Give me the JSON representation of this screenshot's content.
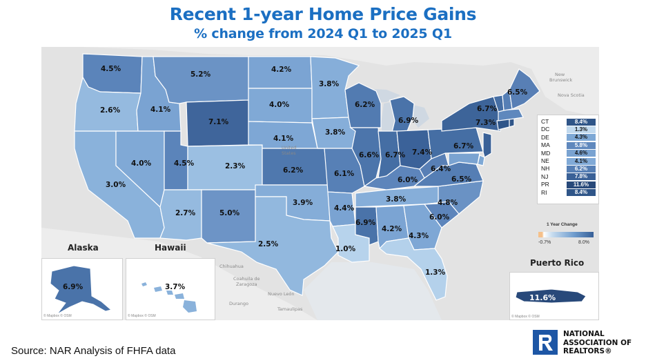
{
  "header": {
    "title": "Recent 1-year Home Price Gains",
    "subtitle": "% change from 2024 Q1 to 2025 Q1"
  },
  "colors": {
    "title": "#1b6fc2",
    "scale_low": "#c7dcef",
    "scale_high": "#365f97",
    "scale_negative": "#f5c08a",
    "realtor_blue": "#1d56a5"
  },
  "states": [
    {
      "code": "WA",
      "value": "4.5%"
    },
    {
      "code": "OR",
      "value": "2.6%"
    },
    {
      "code": "CA",
      "value": "3.0%"
    },
    {
      "code": "ID",
      "value": "4.1%"
    },
    {
      "code": "NV",
      "value": "4.0%"
    },
    {
      "code": "MT",
      "value": "5.2%"
    },
    {
      "code": "WY",
      "value": "7.1%"
    },
    {
      "code": "UT",
      "value": "4.5%"
    },
    {
      "code": "AZ",
      "value": "2.7%"
    },
    {
      "code": "CO",
      "value": "2.3%"
    },
    {
      "code": "NM",
      "value": "5.0%"
    },
    {
      "code": "ND",
      "value": "4.2%"
    },
    {
      "code": "SD",
      "value": "4.0%"
    },
    {
      "code": "NE",
      "value": "4.1%"
    },
    {
      "code": "KS",
      "value": "6.2%"
    },
    {
      "code": "OK",
      "value": "3.9%"
    },
    {
      "code": "TX",
      "value": "2.5%"
    },
    {
      "code": "MN",
      "value": "3.8%"
    },
    {
      "code": "IA",
      "value": "3.8%"
    },
    {
      "code": "MO",
      "value": "6.1%"
    },
    {
      "code": "AR",
      "value": "4.4%"
    },
    {
      "code": "LA",
      "value": "1.0%"
    },
    {
      "code": "WI",
      "value": "6.2%"
    },
    {
      "code": "MI",
      "value": "6.9%"
    },
    {
      "code": "IL",
      "value": "6.6%"
    },
    {
      "code": "IN",
      "value": "6.7%"
    },
    {
      "code": "OH",
      "value": "7.4%"
    },
    {
      "code": "KY",
      "value": "6.0%"
    },
    {
      "code": "TN",
      "value": "3.8%"
    },
    {
      "code": "MS",
      "value": "6.9%"
    },
    {
      "code": "AL",
      "value": "4.2%"
    },
    {
      "code": "GA",
      "value": "4.3%"
    },
    {
      "code": "FL",
      "value": "1.3%"
    },
    {
      "code": "SC",
      "value": "6.0%"
    },
    {
      "code": "NC",
      "value": "4.8%"
    },
    {
      "code": "VA",
      "value": "6.5%"
    },
    {
      "code": "WV",
      "value": "6.4%"
    },
    {
      "code": "PA",
      "value": "6.7%"
    },
    {
      "code": "NY",
      "value": "7.3%"
    },
    {
      "code": "VT",
      "value": "6.7%"
    },
    {
      "code": "ME",
      "value": "6.5%"
    },
    {
      "code": "AK",
      "value": "6.9%"
    },
    {
      "code": "HI",
      "value": "3.7%"
    },
    {
      "code": "PR",
      "value": "11.6%"
    }
  ],
  "small_states": [
    {
      "code": "CT",
      "value": "8.4%",
      "color": "#2f5588"
    },
    {
      "code": "DC",
      "value": "1.3%",
      "color": "#c2daef"
    },
    {
      "code": "DE",
      "value": "4.3%",
      "color": "#7ea8d5"
    },
    {
      "code": "MA",
      "value": "5.8%",
      "color": "#5f88bd"
    },
    {
      "code": "MD",
      "value": "4.6%",
      "color": "#7aa3d1"
    },
    {
      "code": "NE",
      "value": "4.1%",
      "color": "#81aad7"
    },
    {
      "code": "NH",
      "value": "6.2%",
      "color": "#567fb5"
    },
    {
      "code": "NJ",
      "value": "7.8%",
      "color": "#3a6197"
    },
    {
      "code": "PR",
      "value": "11.6%",
      "color": "#28497a"
    },
    {
      "code": "RI",
      "value": "8.4%",
      "color": "#2f5588"
    }
  ],
  "map_labels": {
    "country_line1": "United",
    "country_line2": "States",
    "new_brunswick_1": "New",
    "new_brunswick_2": "Brunswick",
    "nova_scotia": "Nova Scotia",
    "chihuahua": "Chihuahua",
    "coahuila_1": "Coahuila de",
    "coahuila_2": "Zaragoza",
    "nuevo_leon": "Nuevo León",
    "durango": "Durango",
    "tamaulipas": "Tamaulipas"
  },
  "insets": {
    "alaska": "Alaska",
    "hawaii": "Hawaii",
    "puerto_rico": "Puerto Rico",
    "attribution": "© Mapbox © OSM"
  },
  "legend": {
    "title": "1 Year Change",
    "min": "-0.7%",
    "max": "8.0%"
  },
  "footer": {
    "source": "Source: NAR Analysis of FHFA data",
    "logo_line1": "NATIONAL",
    "logo_line2": "ASSOCIATION OF",
    "logo_line3": "REALTORS®"
  }
}
